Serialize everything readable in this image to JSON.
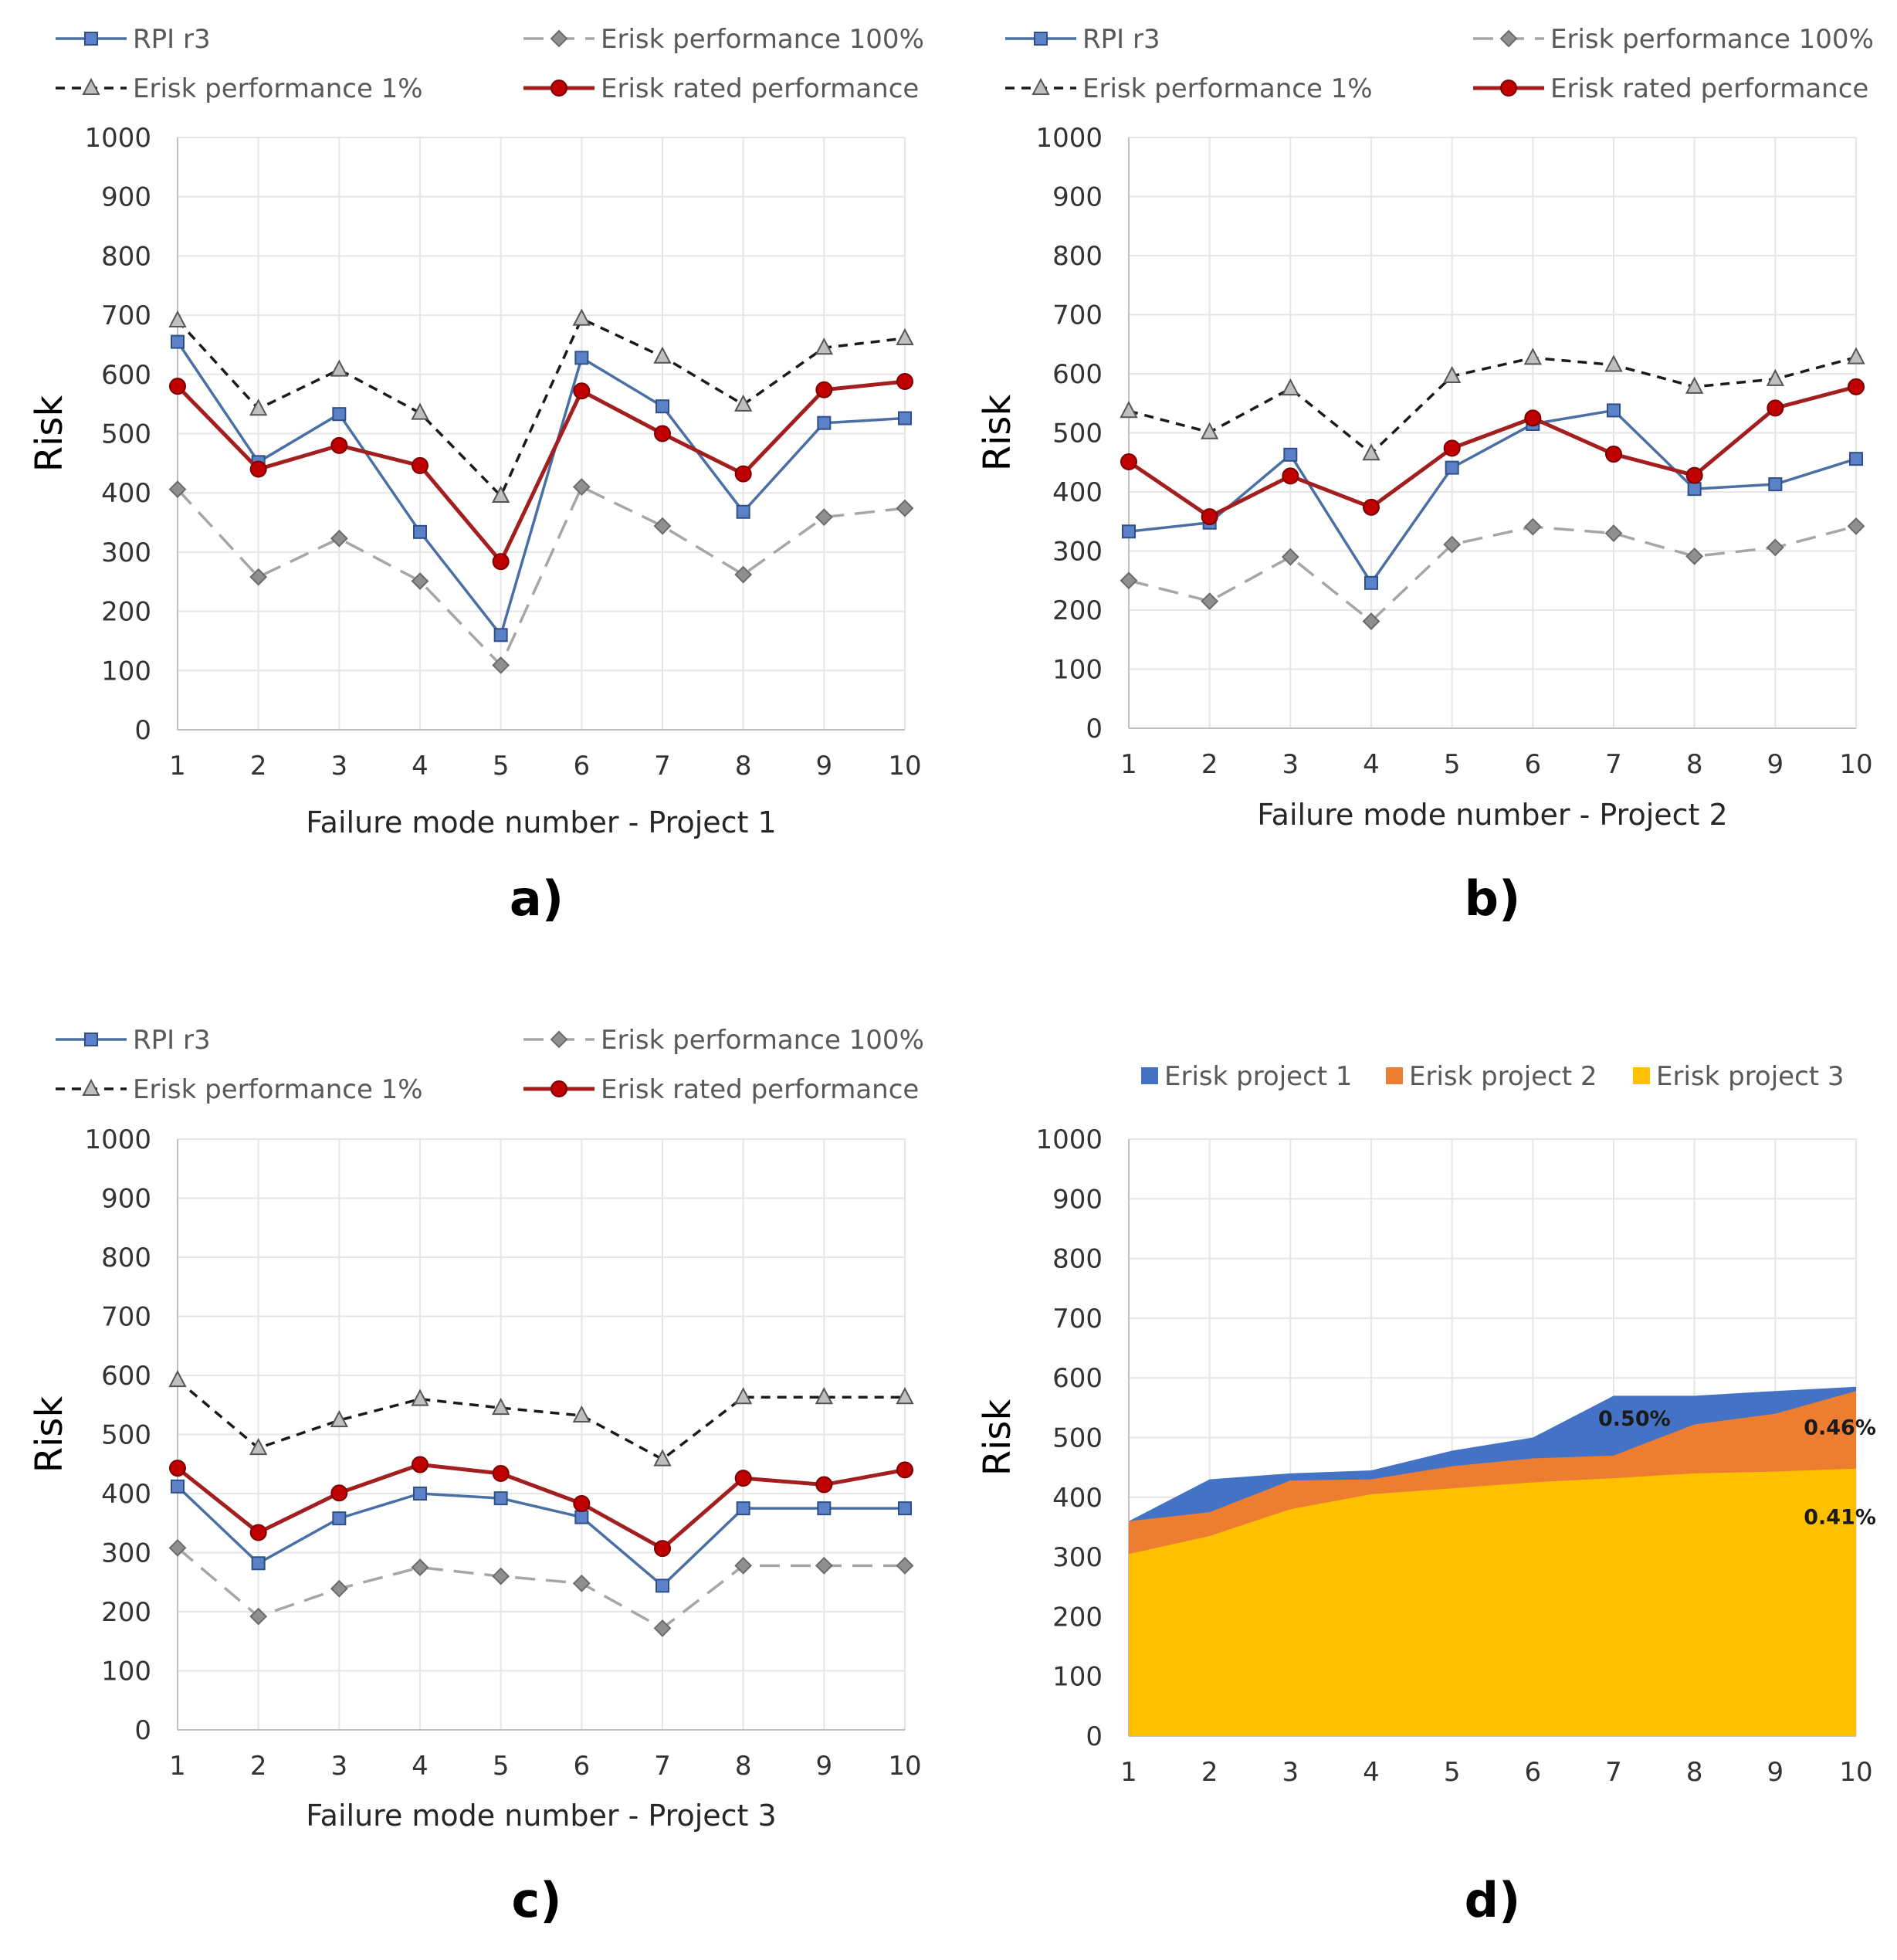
{
  "chart_data": [
    {
      "id": "a",
      "type": "line",
      "panel_label": "a)",
      "xlabel": "Failure mode number - Project 1",
      "ylabel": "Risk",
      "ylim": [
        0,
        1000
      ],
      "yticks": [
        "0",
        "100",
        "200",
        "300",
        "400",
        "500",
        "600",
        "700",
        "800",
        "900",
        "1000"
      ],
      "categories": [
        "1",
        "2",
        "3",
        "4",
        "5",
        "6",
        "7",
        "8",
        "9",
        "10"
      ],
      "legend": [
        "RPI r3",
        "Erisk performance 100%",
        "Erisk performance 1%",
        "Erisk rated performance"
      ],
      "series": [
        {
          "name": "RPI r3",
          "values": [
            655,
            452,
            533,
            334,
            160,
            628,
            546,
            368,
            518,
            526
          ]
        },
        {
          "name": "Erisk performance 100%",
          "values": [
            406,
            258,
            323,
            251,
            109,
            410,
            344,
            262,
            359,
            374
          ]
        },
        {
          "name": "Erisk performance 1%",
          "values": [
            691,
            542,
            608,
            535,
            395,
            694,
            630,
            549,
            645,
            661
          ]
        },
        {
          "name": "Erisk rated performance",
          "values": [
            580,
            440,
            480,
            446,
            284,
            572,
            500,
            432,
            574,
            588
          ]
        }
      ]
    },
    {
      "id": "b",
      "type": "line",
      "panel_label": "b)",
      "xlabel": "Failure mode number - Project 2",
      "ylabel": "Risk",
      "ylim": [
        0,
        1000
      ],
      "yticks": [
        "0",
        "100",
        "200",
        "300",
        "400",
        "500",
        "600",
        "700",
        "800",
        "900",
        "1000"
      ],
      "categories": [
        "1",
        "2",
        "3",
        "4",
        "5",
        "6",
        "7",
        "8",
        "9",
        "10"
      ],
      "legend": [
        "RPI r3",
        "Erisk performance 100%",
        "Erisk performance 1%",
        "Erisk rated performance"
      ],
      "series": [
        {
          "name": "RPI r3",
          "values": [
            333,
            348,
            463,
            246,
            441,
            515,
            538,
            405,
            413,
            456
          ]
        },
        {
          "name": "Erisk performance 100%",
          "values": [
            250,
            215,
            290,
            181,
            311,
            341,
            330,
            291,
            306,
            342
          ]
        },
        {
          "name": "Erisk performance 1%",
          "values": [
            537,
            501,
            575,
            465,
            596,
            627,
            615,
            578,
            591,
            628
          ]
        },
        {
          "name": "Erisk rated performance",
          "values": [
            451,
            358,
            427,
            374,
            474,
            525,
            464,
            428,
            542,
            578
          ]
        }
      ]
    },
    {
      "id": "c",
      "type": "line",
      "panel_label": "c)",
      "xlabel": "Failure mode number - Project 3",
      "ylabel": "Risk",
      "ylim": [
        0,
        1000
      ],
      "yticks": [
        "0",
        "100",
        "200",
        "300",
        "400",
        "500",
        "600",
        "700",
        "800",
        "900",
        "1000"
      ],
      "categories": [
        "1",
        "2",
        "3",
        "4",
        "5",
        "6",
        "7",
        "8",
        "9",
        "10"
      ],
      "legend": [
        "RPI r3",
        "Erisk performance 100%",
        "Erisk performance 1%",
        "Erisk rated performance"
      ],
      "series": [
        {
          "name": "RPI r3",
          "values": [
            412,
            282,
            358,
            400,
            392,
            360,
            244,
            375,
            375,
            375
          ]
        },
        {
          "name": "Erisk performance 100%",
          "values": [
            308,
            192,
            239,
            275,
            260,
            248,
            172,
            278,
            278,
            278
          ]
        },
        {
          "name": "Erisk performance 1%",
          "values": [
            592,
            477,
            524,
            560,
            545,
            532,
            458,
            563,
            563,
            563
          ]
        },
        {
          "name": "Erisk rated performance",
          "values": [
            443,
            334,
            401,
            449,
            434,
            383,
            307,
            426,
            415,
            440
          ]
        }
      ]
    },
    {
      "id": "d",
      "type": "area",
      "panel_label": "d)",
      "xlabel": "",
      "ylabel": "Risk",
      "ylim": [
        0,
        1000
      ],
      "yticks": [
        "0",
        "100",
        "200",
        "300",
        "400",
        "500",
        "600",
        "700",
        "800",
        "900",
        "1000"
      ],
      "categories": [
        "1",
        "2",
        "3",
        "4",
        "5",
        "6",
        "7",
        "8",
        "9",
        "10"
      ],
      "legend": [
        "Erisk project 1",
        "Erisk project 2",
        "Erisk project 3"
      ],
      "series": [
        {
          "name": "Erisk project 1",
          "values": [
            360,
            430,
            440,
            445,
            478,
            500,
            570,
            570,
            578,
            585
          ]
        },
        {
          "name": "Erisk project 2",
          "values": [
            360,
            375,
            428,
            430,
            452,
            465,
            470,
            522,
            540,
            578
          ]
        },
        {
          "name": "Erisk project 3",
          "values": [
            305,
            335,
            380,
            405,
            415,
            425,
            432,
            440,
            443,
            448
          ]
        }
      ],
      "annotations": [
        "0.50%",
        "0.46%",
        "0.41%"
      ]
    }
  ],
  "colors": {
    "rpi": "#4a6fa5",
    "rpi_marker": "#5b82c8",
    "erisk100": "#a6a6a6",
    "erisk100_marker": "#8f8f8f",
    "erisk1": "#1a1a1a",
    "erisk1_marker": "#bfbfbf",
    "rated": "#a31f1f",
    "rated_marker": "#c00000",
    "area1": "#4472c4",
    "area2": "#ed7d31",
    "area3": "#ffc000",
    "grid": "#e6e6e6"
  }
}
